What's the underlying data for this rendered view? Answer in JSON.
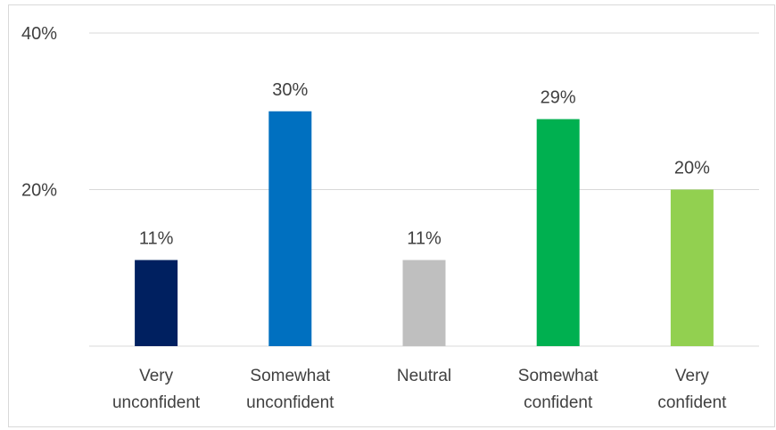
{
  "chart_data": {
    "type": "bar",
    "categories": [
      [
        "Very",
        "unconfident"
      ],
      [
        "Somewhat",
        "unconfident"
      ],
      [
        "Neutral"
      ],
      [
        "Somewhat",
        "confident"
      ],
      [
        "Very",
        "confident"
      ]
    ],
    "values": [
      11,
      30,
      11,
      29,
      20
    ],
    "data_labels": [
      "11%",
      "30%",
      "11%",
      "29%",
      "20%"
    ],
    "bar_colors": [
      "#002060",
      "#0070C0",
      "#BFBFBF",
      "#00B050",
      "#92D050"
    ],
    "y_ticks": [
      {
        "value": 20,
        "label": "20%"
      },
      {
        "value": 40,
        "label": "40%"
      }
    ],
    "ylim": [
      0,
      40
    ],
    "grid": true,
    "legend": false,
    "title": "",
    "xlabel": "",
    "ylabel": ""
  }
}
